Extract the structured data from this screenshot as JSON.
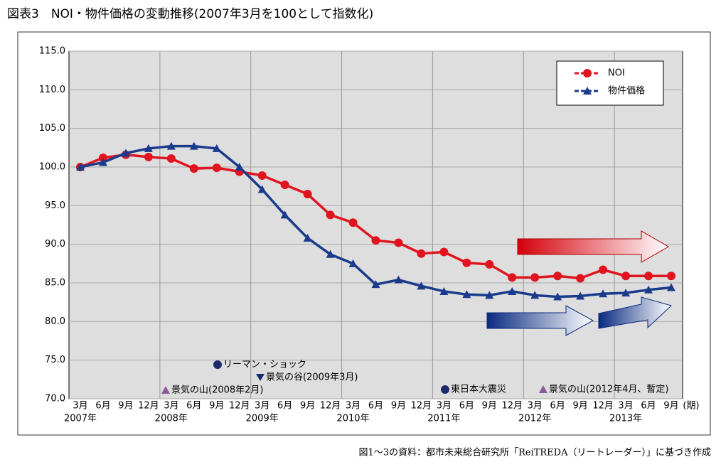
{
  "chart_data": {
    "type": "line",
    "title": "図表3　NOI・物件価格の変動推移(2007年3月を100として指数化)",
    "source": "図1～3の資料：都市未来総合研究所「ReiTREDA（リートレーダー）」に基づき作成",
    "x_unit": "(期)",
    "categories": [
      "3月",
      "6月",
      "9月",
      "12月",
      "3月",
      "6月",
      "9月",
      "12月",
      "3月",
      "6月",
      "9月",
      "12月",
      "3月",
      "6月",
      "9月",
      "12月",
      "3月",
      "6月",
      "9月",
      "12月",
      "3月",
      "6月",
      "9月",
      "12月",
      "3月",
      "6月",
      "9月"
    ],
    "x_groups": [
      "2007年",
      "2008年",
      "2009年",
      "2010年",
      "2011年",
      "2012年",
      "2013年"
    ],
    "series": [
      {
        "name": "NOI",
        "color": "#e0141e",
        "marker": "circle",
        "values": [
          100.0,
          101.2,
          101.6,
          101.3,
          101.1,
          99.8,
          99.9,
          99.4,
          98.9,
          97.7,
          96.5,
          93.8,
          92.8,
          90.5,
          90.2,
          88.8,
          89.0,
          87.6,
          87.4,
          85.7,
          85.7,
          85.9,
          85.6,
          86.7,
          85.9,
          85.9,
          85.9
        ]
      },
      {
        "name": "物件価格",
        "color": "#1a3a8c",
        "marker": "triangle",
        "values": [
          100.0,
          100.6,
          101.8,
          102.4,
          102.7,
          102.7,
          102.4,
          100.0,
          97.1,
          93.8,
          90.8,
          88.7,
          87.5,
          84.8,
          85.4,
          84.6,
          83.9,
          83.5,
          83.4,
          83.9,
          83.4,
          83.2,
          83.3,
          83.6,
          83.7,
          84.1,
          84.4
        ]
      }
    ],
    "ylim": [
      70,
      115
    ],
    "yticks": [
      {
        "value": 70,
        "label": "70.0"
      },
      {
        "value": 75,
        "label": "75.0"
      },
      {
        "value": 80,
        "label": "80.0"
      },
      {
        "value": 85,
        "label": "85.0"
      },
      {
        "value": 90,
        "label": "90.0"
      },
      {
        "value": 95,
        "label": "95.0"
      },
      {
        "value": 100,
        "label": "100.0"
      },
      {
        "value": 105,
        "label": "105.0"
      },
      {
        "value": 110,
        "label": "110.0"
      },
      {
        "value": 115,
        "label": "115.0"
      }
    ],
    "grid": true,
    "legend": "top-right",
    "annotations": [
      {
        "text": "リーマン・ショック",
        "marker": "circle",
        "color": "#1a2a6c"
      },
      {
        "text": "景気の谷(2009年3月)",
        "marker": "triangle-down",
        "color": "#1a2a6c"
      },
      {
        "text": "景気の山(2008年2月)",
        "marker": "triangle",
        "color": "#8a5a9a"
      },
      {
        "text": "東日本大震災",
        "marker": "circle",
        "color": "#1a2a6c"
      },
      {
        "text": "景気の山(2012年4月、暫定)",
        "marker": "triangle",
        "color": "#8a5a9a"
      }
    ]
  }
}
